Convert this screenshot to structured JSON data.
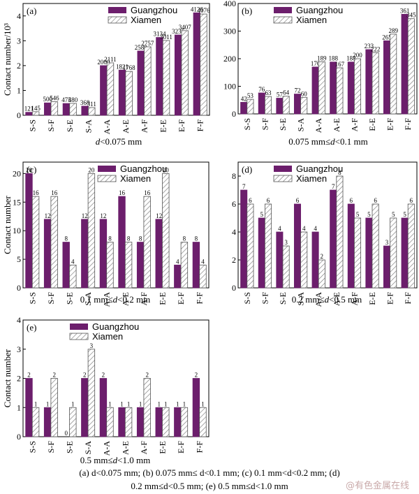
{
  "colors": {
    "guangzhou": "#6c1e6c",
    "xiamen_hatch": "#7a7a7a"
  },
  "legend": {
    "guangzhou": "Guangzhou",
    "xiamen": "Xiamen"
  },
  "chart_data": [
    {
      "type": "bar",
      "panel": "(a)",
      "xlabel": "d<0.075 mm",
      "ylabel": "Contact number/10³",
      "categories": [
        "S-S",
        "S-F",
        "S-E",
        "S-A",
        "A-A",
        "A-E",
        "A-F",
        "E-E",
        "E-F",
        "F-F"
      ],
      "series": [
        {
          "name": "Guangzhou",
          "values": [
            121,
            500,
            475,
            368,
            2000,
            1821,
            2589,
            3134,
            3235,
            4126
          ]
        },
        {
          "name": "Xiamen",
          "values": [
            145,
            546,
            480,
            311,
            2111,
            1768,
            2757,
            3011,
            3407,
            4076
          ]
        }
      ],
      "ylim": [
        0,
        4.5
      ],
      "yticks": [
        0,
        1,
        2,
        3,
        4
      ],
      "scale": 0.001,
      "legend_position": "top-left"
    },
    {
      "type": "bar",
      "panel": "(b)",
      "xlabel": "0.075 mm≤d<0.1 mm",
      "ylabel": "",
      "categories": [
        "S-S",
        "S-F",
        "S-E",
        "S-A",
        "A-A",
        "A-E",
        "A-F",
        "E-E",
        "E-F",
        "F-F"
      ],
      "series": [
        {
          "name": "Guangzhou",
          "values": [
            42,
            76,
            57,
            72,
            170,
            188,
            188,
            233,
            265,
            361
          ]
        },
        {
          "name": "Xiamen",
          "values": [
            53,
            63,
            64,
            60,
            189,
            167,
            200,
            222,
            289,
            345
          ]
        }
      ],
      "ylim": [
        0,
        400
      ],
      "yticks": [
        0,
        100,
        200,
        300,
        400
      ],
      "scale": 1,
      "legend_position": "top-left"
    },
    {
      "type": "bar",
      "panel": "(c)",
      "xlabel": "0.1 mm≤d<0.2 mm",
      "ylabel": "Contact number",
      "categories": [
        "S-S",
        "S-F",
        "S-E",
        "S-A",
        "A-A",
        "A-E",
        "A-F",
        "E-E",
        "E-F",
        "F-F"
      ],
      "series": [
        {
          "name": "Guangzhou",
          "values": [
            20,
            12,
            8,
            12,
            12,
            16,
            8,
            12,
            4,
            8
          ]
        },
        {
          "name": "Xiamen",
          "values": [
            16,
            16,
            4,
            20,
            8,
            8,
            16,
            20,
            8,
            4
          ]
        }
      ],
      "ylim": [
        0,
        22
      ],
      "yticks": [
        0,
        5,
        10,
        15,
        20
      ],
      "scale": 1,
      "legend_position": "top-right"
    },
    {
      "type": "bar",
      "panel": "(d)",
      "xlabel": "0.2 mm≤d<0.5 mm",
      "ylabel": "",
      "categories": [
        "S-S",
        "S-F",
        "S-E",
        "S-A",
        "A-A",
        "A-E",
        "A-F",
        "E-E",
        "E-F",
        "F-F"
      ],
      "series": [
        {
          "name": "Guangzhou",
          "values": [
            7,
            5,
            4,
            6,
            4,
            7,
            6,
            5,
            3,
            5
          ]
        },
        {
          "name": "Xiamen",
          "values": [
            6,
            6,
            3,
            4,
            2,
            8,
            5,
            6,
            5,
            6
          ]
        }
      ],
      "ylim": [
        0,
        9
      ],
      "yticks": [
        0,
        2,
        4,
        6,
        8
      ],
      "scale": 1,
      "legend_position": "top-left"
    },
    {
      "type": "bar",
      "panel": "(e)",
      "xlabel": "0.5 mm≤d<1.0 mm",
      "ylabel": "Contact number",
      "categories": [
        "S-S",
        "S-F",
        "S-E",
        "S-A",
        "A-A",
        "A-E",
        "A-F",
        "E-E",
        "E-F",
        "F-F"
      ],
      "series": [
        {
          "name": "Guangzhou",
          "values": [
            2,
            1,
            0,
            2,
            2,
            1,
            1,
            1,
            1,
            2
          ]
        },
        {
          "name": "Xiamen",
          "values": [
            1,
            2,
            1,
            3,
            1,
            1,
            2,
            1,
            1,
            1
          ]
        }
      ],
      "ylim": [
        0,
        4
      ],
      "yticks": [
        0,
        1,
        2,
        3,
        4
      ],
      "scale": 1,
      "legend_position": "top-left"
    }
  ],
  "caption": {
    "line1": "(a) d<0.075 mm; (b) 0.075 mm≤ d<0.1 mm; (c) 0.1 mm<d<0.2 mm; (d)",
    "line2": "0.2 mm≤d<0.5 mm; (e) 0.5 mm≤d<1.0 mm"
  },
  "watermark": "@有色金属在线"
}
